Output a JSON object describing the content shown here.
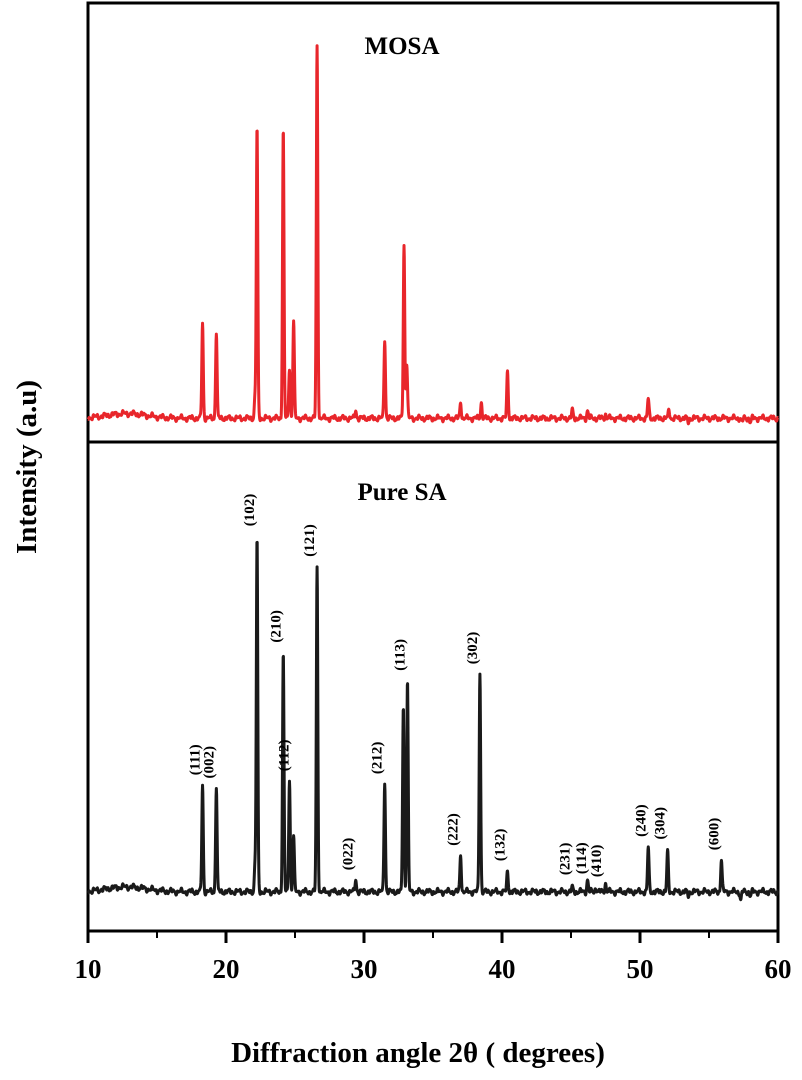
{
  "chart_data": {
    "type": "line",
    "xlabel": "Diffraction angle 2θ ( degrees)",
    "ylabel": "Intensity (a.u)",
    "xlim": [
      10,
      60
    ],
    "xticks": [
      "10",
      "20",
      "30",
      "40",
      "50",
      "60"
    ],
    "grid": false,
    "legend": "none",
    "panels": [
      {
        "title": "MOSA",
        "color": "#e8262b",
        "baseline": 0.03,
        "ylim": [
          0,
          1
        ],
        "peaks": [
          {
            "x": 18.3,
            "y": 0.27
          },
          {
            "x": 19.3,
            "y": 0.25
          },
          {
            "x": 22.1,
            "y": 0.08
          },
          {
            "x": 22.25,
            "y": 0.77
          },
          {
            "x": 24.15,
            "y": 0.77
          },
          {
            "x": 24.6,
            "y": 0.16
          },
          {
            "x": 24.9,
            "y": 0.28
          },
          {
            "x": 26.6,
            "y": 0.98
          },
          {
            "x": 29.4,
            "y": 0.05
          },
          {
            "x": 31.5,
            "y": 0.23
          },
          {
            "x": 32.9,
            "y": 0.47
          },
          {
            "x": 33.1,
            "y": 0.17
          },
          {
            "x": 37.0,
            "y": 0.07
          },
          {
            "x": 38.5,
            "y": 0.07
          },
          {
            "x": 39.0,
            "y": 0.03
          },
          {
            "x": 40.4,
            "y": 0.15
          },
          {
            "x": 45.1,
            "y": 0.05
          },
          {
            "x": 46.2,
            "y": 0.05
          },
          {
            "x": 46.8,
            "y": 0.03
          },
          {
            "x": 47.5,
            "y": 0.04
          },
          {
            "x": 50.6,
            "y": 0.08
          },
          {
            "x": 52.1,
            "y": 0.05
          },
          {
            "x": 53.5,
            "y": 0.02
          },
          {
            "x": 56.0,
            "y": 0.03
          },
          {
            "x": 57.4,
            "y": 0.02
          },
          {
            "x": 58.0,
            "y": 0.02
          }
        ]
      },
      {
        "title": "Pure SA",
        "color": "#1a1a1a",
        "baseline": 0.04,
        "ylim": [
          0,
          1
        ],
        "peaks": [
          {
            "x": 18.3,
            "y": 0.3
          },
          {
            "x": 19.3,
            "y": 0.3
          },
          {
            "x": 22.1,
            "y": 0.1
          },
          {
            "x": 22.25,
            "y": 0.91
          },
          {
            "x": 24.15,
            "y": 0.63
          },
          {
            "x": 24.6,
            "y": 0.32
          },
          {
            "x": 24.9,
            "y": 0.18
          },
          {
            "x": 26.6,
            "y": 0.84
          },
          {
            "x": 29.4,
            "y": 0.07
          },
          {
            "x": 31.5,
            "y": 0.31
          },
          {
            "x": 32.85,
            "y": 0.5
          },
          {
            "x": 33.15,
            "y": 0.56
          },
          {
            "x": 37.0,
            "y": 0.13
          },
          {
            "x": 38.4,
            "y": 0.58
          },
          {
            "x": 39.0,
            "y": 0.04
          },
          {
            "x": 40.4,
            "y": 0.09
          },
          {
            "x": 45.1,
            "y": 0.05
          },
          {
            "x": 46.2,
            "y": 0.07
          },
          {
            "x": 46.8,
            "y": 0.05
          },
          {
            "x": 47.5,
            "y": 0.06
          },
          {
            "x": 50.6,
            "y": 0.15
          },
          {
            "x": 52.0,
            "y": 0.14
          },
          {
            "x": 53.5,
            "y": 0.03
          },
          {
            "x": 55.9,
            "y": 0.12
          },
          {
            "x": 57.3,
            "y": 0.02
          },
          {
            "x": 58.0,
            "y": 0.03
          }
        ],
        "annotations": [
          {
            "text": "(111)",
            "x": 18.3
          },
          {
            "text": "(002)",
            "x": 19.3
          },
          {
            "text": "(102)",
            "x": 22.25
          },
          {
            "text": "(210)",
            "x": 24.15
          },
          {
            "text": "(112)",
            "x": 24.75
          },
          {
            "text": "(121)",
            "x": 26.6
          },
          {
            "text": "(022)",
            "x": 29.4
          },
          {
            "text": "(212)",
            "x": 31.5
          },
          {
            "text": "(113)",
            "x": 33.15
          },
          {
            "text": "(222)",
            "x": 37.0
          },
          {
            "text": "(302)",
            "x": 38.4
          },
          {
            "text": "(132)",
            "x": 40.4
          },
          {
            "text": "(231)",
            "x": 45.1
          },
          {
            "text": "(114)",
            "x": 46.3
          },
          {
            "text": "(410)",
            "x": 47.4
          },
          {
            "text": "(240)",
            "x": 50.6
          },
          {
            "text": "(304)",
            "x": 52.0
          },
          {
            "text": "(600)",
            "x": 55.9
          }
        ]
      }
    ]
  }
}
